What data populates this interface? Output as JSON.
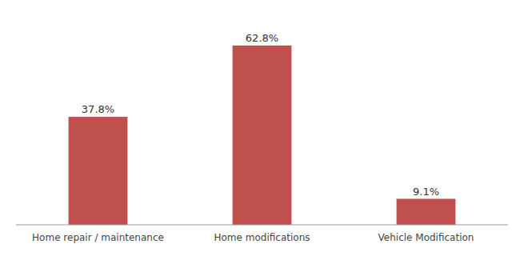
{
  "chart_data": {
    "type": "bar",
    "categories": [
      "Home repair / maintenance",
      "Home modifications",
      "Vehicle Modification"
    ],
    "values": [
      37.8,
      62.8,
      9.1
    ],
    "value_labels": [
      "37.8%",
      "62.8%",
      "9.1%"
    ],
    "color": "#c0504d",
    "ylim": [
      0,
      72
    ],
    "data_labels": true,
    "tick_labels": "x",
    "grid": false
  }
}
